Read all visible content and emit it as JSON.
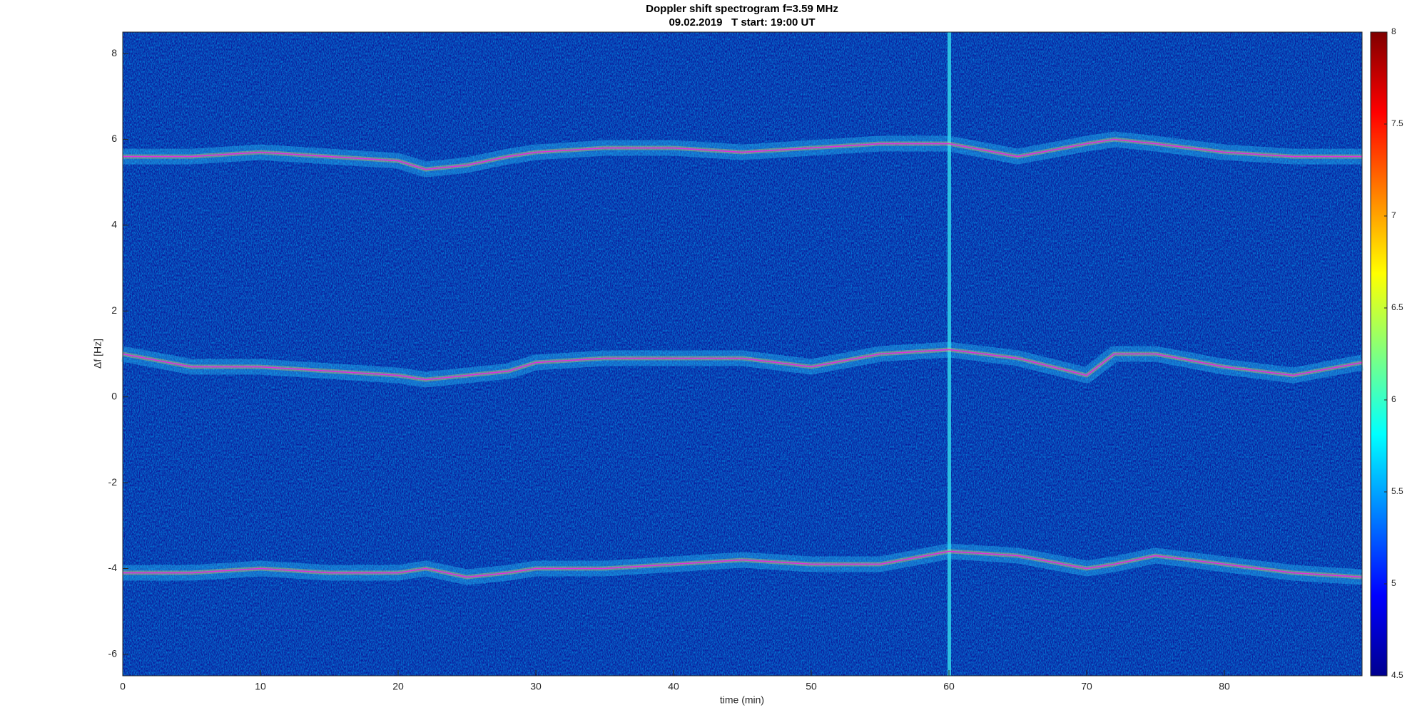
{
  "chart_data": {
    "type": "line",
    "title": "Doppler shift spectrogram f=3.59 MHz",
    "subtitle": "09.02.2019   T start: 19:00 UT",
    "x_label": "time (min)",
    "y_label": "Δf [Hz]",
    "x": [
      0,
      5,
      10,
      15,
      20,
      22,
      25,
      28,
      30,
      35,
      40,
      45,
      50,
      55,
      60,
      65,
      70,
      72,
      75,
      80,
      85,
      90
    ],
    "series": [
      {
        "color": "#e030e0",
        "values": [
          5.6,
          5.6,
          5.7,
          5.6,
          5.5,
          5.3,
          5.4,
          5.6,
          5.7,
          5.8,
          5.8,
          5.7,
          5.8,
          5.9,
          5.9,
          5.6,
          5.9,
          6.0,
          5.9,
          5.7,
          5.6,
          5.6
        ]
      },
      {
        "color": "#e030e0",
        "values": [
          1.0,
          0.7,
          0.7,
          0.6,
          0.5,
          0.4,
          0.5,
          0.6,
          0.8,
          0.9,
          0.9,
          0.9,
          0.7,
          1.0,
          1.1,
          0.9,
          0.5,
          1.0,
          1.0,
          0.7,
          0.5,
          0.8
        ]
      },
      {
        "color": "#e030e0",
        "values": [
          -4.1,
          -4.1,
          -4.0,
          -4.1,
          -4.1,
          -4.0,
          -4.2,
          -4.1,
          -4.0,
          -4.0,
          -3.9,
          -3.8,
          -3.9,
          -3.9,
          -3.6,
          -3.7,
          -4.0,
          -3.9,
          -3.7,
          -3.9,
          -4.1,
          -4.2
        ]
      }
    ],
    "xlim": [
      0,
      90
    ],
    "xticks": [
      0,
      10,
      20,
      30,
      40,
      50,
      60,
      70,
      80
    ],
    "ylim": [
      -6.5,
      8.5
    ],
    "yticks": [
      -6,
      -4,
      -2,
      0,
      2,
      4,
      6,
      8
    ],
    "background_color": "#0b1c9c",
    "colorbar": {
      "lim": [
        4.5,
        8
      ],
      "ticks": [
        4.5,
        5,
        5.5,
        6,
        6.5,
        7,
        7.5,
        8
      ]
    }
  }
}
